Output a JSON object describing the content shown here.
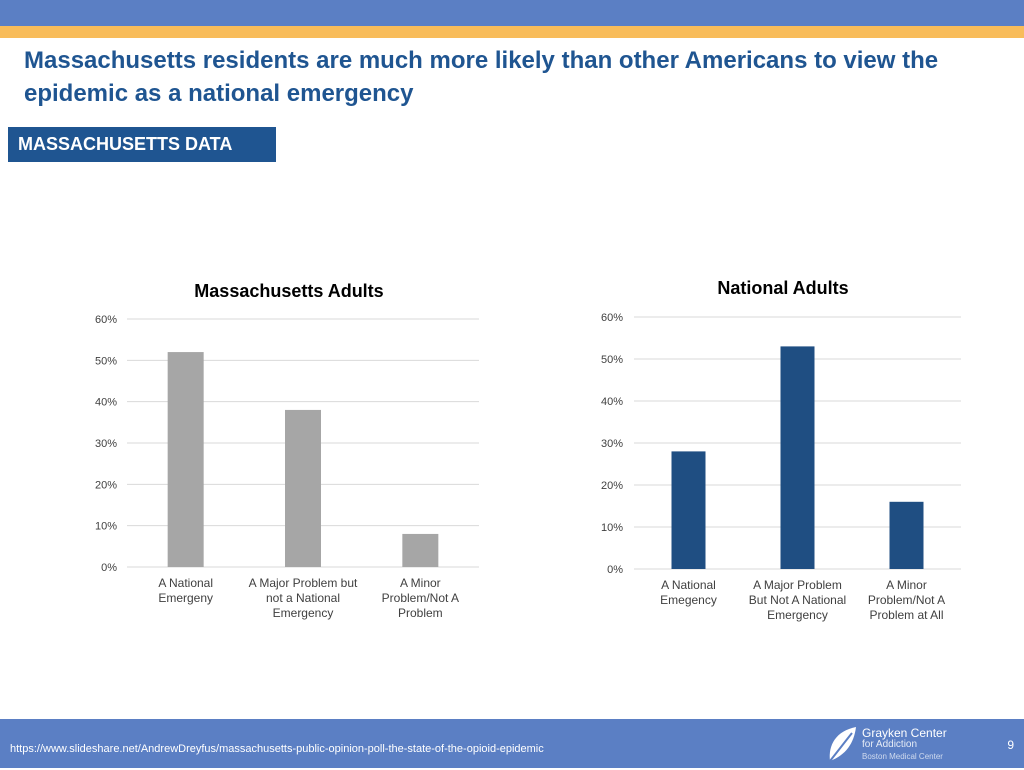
{
  "header": {
    "title": "Massachusetts residents are much more likely than other Americans to view the epidemic as a national emergency",
    "section_label": "MASSACHUSETTS DATA"
  },
  "colors": {
    "ma_bar": "#a6a6a6",
    "national_bar": "#1f4e82",
    "title": "#1f5591",
    "band": "#5b7fc4",
    "accent": "#f8bc5a"
  },
  "chart_data": [
    {
      "type": "bar",
      "title": "Massachusetts Adults",
      "categories": [
        "A National Emergeny",
        "A Major Problem but not a National Emergency",
        "A Minor Problem/Not A Problem"
      ],
      "category_lines": [
        [
          "A National",
          "Emergeny"
        ],
        [
          "A Major Problem but",
          "not a National",
          "Emergency"
        ],
        [
          "A Minor",
          "Problem/Not A",
          "Problem"
        ]
      ],
      "values": [
        52,
        38,
        8
      ],
      "ylim": [
        0,
        60
      ],
      "yticks": [
        "0%",
        "10%",
        "20%",
        "30%",
        "40%",
        "50%",
        "60%"
      ],
      "grid": true,
      "color": "#a6a6a6"
    },
    {
      "type": "bar",
      "title": "National Adults",
      "categories": [
        "A National Emegency",
        "A Major Problem But Not A National Emergency",
        "A Minor Problem/Not A Problem at All"
      ],
      "category_lines": [
        [
          "A National",
          "Emegency"
        ],
        [
          "A Major Problem",
          "But Not A National",
          "Emergency"
        ],
        [
          "A Minor",
          "Problem/Not A",
          "Problem at All"
        ]
      ],
      "values": [
        28,
        53,
        16
      ],
      "ylim": [
        0,
        60
      ],
      "yticks": [
        "0%",
        "10%",
        "20%",
        "30%",
        "40%",
        "50%",
        "60%"
      ],
      "grid": true,
      "color": "#1f4e82"
    }
  ],
  "footer": {
    "url": "https://www.slideshare.net/AndrewDreyfus/massachusetts-public-opinion-poll-the-state-of-the-opioid-epidemic",
    "page_number": "9",
    "logo_line1": "Grayken Center",
    "logo_line2": "for Addiction",
    "logo_line3": "Boston Medical Center"
  }
}
